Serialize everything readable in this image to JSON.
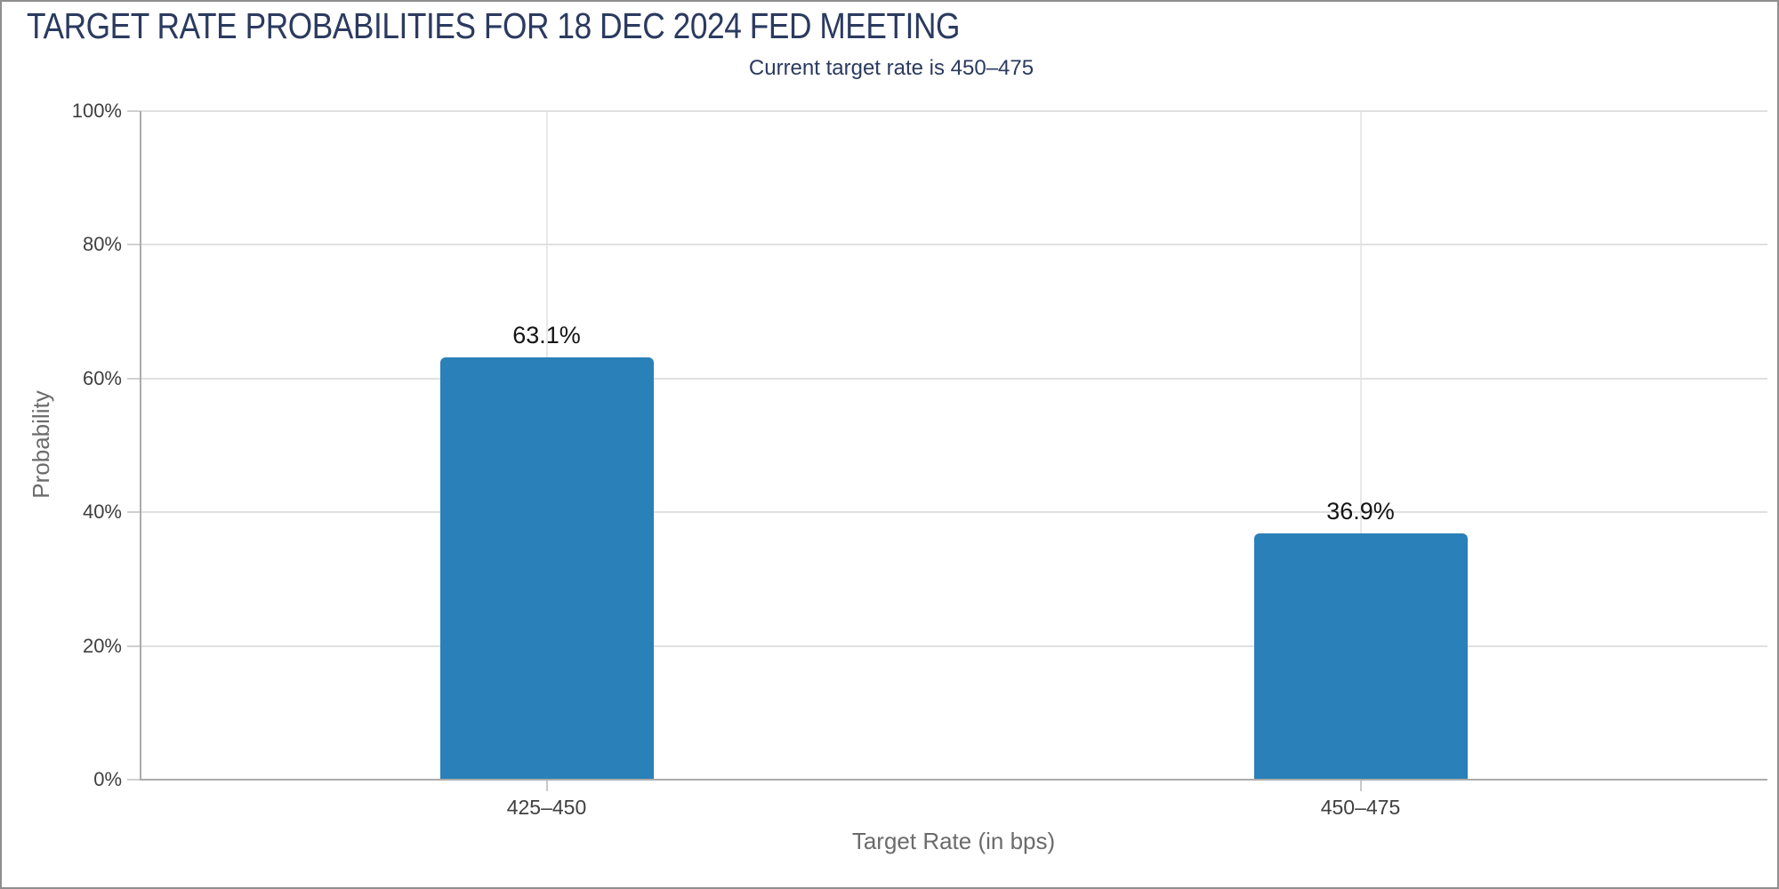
{
  "header": {
    "title": "TARGET RATE PROBABILITIES FOR 18 DEC 2024 FED MEETING",
    "subtitle": "Current target rate is 450–475"
  },
  "chart_data": {
    "type": "bar",
    "title": "TARGET RATE PROBABILITIES FOR 18 DEC 2024 FED MEETING",
    "subtitle": "Current target rate is 450–475",
    "categories": [
      "425–450",
      "450–475"
    ],
    "values": [
      63.1,
      36.9
    ],
    "value_labels": [
      "63.1%",
      "36.9%"
    ],
    "xlabel": "Target Rate (in bps)",
    "ylabel": "Probability",
    "ylim": [
      0,
      100
    ],
    "yticks": [
      0,
      20,
      40,
      60,
      80,
      100
    ],
    "ytick_labels": [
      "0%",
      "20%",
      "40%",
      "60%",
      "80%",
      "100%"
    ],
    "grid": "horizontal gridlines at y ticks, vertical gridlines at category centers",
    "legend": "none",
    "bar_color": "#2a80b9"
  },
  "colors": {
    "title_text": "#2b3a5f",
    "subtitle_text": "#2b3a5f",
    "bar": "#2a80b9",
    "tick_label": "#3f3f3f",
    "axis_title": "#6b6b6b",
    "gridline": "#e0e0e0",
    "axis_line": "#ababab",
    "frame_border": "#8f8f8f"
  }
}
